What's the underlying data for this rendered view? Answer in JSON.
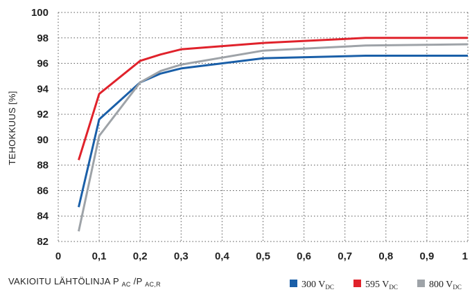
{
  "chart_data": {
    "type": "line",
    "ylabel": "TEHOKKUUS [%]",
    "xlabel": {
      "prefix": "VAKIOITU LÄHTÖLINJA P",
      "sub1": "AC",
      "mid": "/P",
      "sub2": "AC,R"
    },
    "xlim": [
      0,
      1
    ],
    "ylim": [
      82,
      100
    ],
    "x_ticks": [
      "0",
      "0,1",
      "0,2",
      "0,3",
      "0,4",
      "0,5",
      "0,6",
      "0,7",
      "0,8",
      "0,9",
      "1"
    ],
    "y_ticks": [
      "82",
      "84",
      "86",
      "88",
      "90",
      "92",
      "94",
      "96",
      "98",
      "100"
    ],
    "grid": true,
    "legend_position": "bottom-right",
    "series": [
      {
        "name": "300 V",
        "name_sub": "DC",
        "color": "#1a5fa8",
        "x": [
          0.05,
          0.1,
          0.2,
          0.25,
          0.3,
          0.5,
          0.75,
          1.0
        ],
        "y": [
          84.7,
          91.6,
          94.5,
          95.2,
          95.6,
          96.4,
          96.6,
          96.6
        ]
      },
      {
        "name": "595 V",
        "name_sub": "DC",
        "color": "#e0222b",
        "x": [
          0.05,
          0.1,
          0.2,
          0.25,
          0.3,
          0.5,
          0.75,
          1.0
        ],
        "y": [
          88.4,
          93.6,
          96.2,
          96.7,
          97.1,
          97.6,
          98.0,
          98.0
        ]
      },
      {
        "name": "800 V",
        "name_sub": "DC",
        "color": "#9ea3a8",
        "x": [
          0.05,
          0.1,
          0.2,
          0.25,
          0.3,
          0.5,
          0.75,
          1.0
        ],
        "y": [
          82.8,
          90.3,
          94.5,
          95.4,
          95.9,
          97.0,
          97.4,
          97.5
        ]
      }
    ]
  }
}
